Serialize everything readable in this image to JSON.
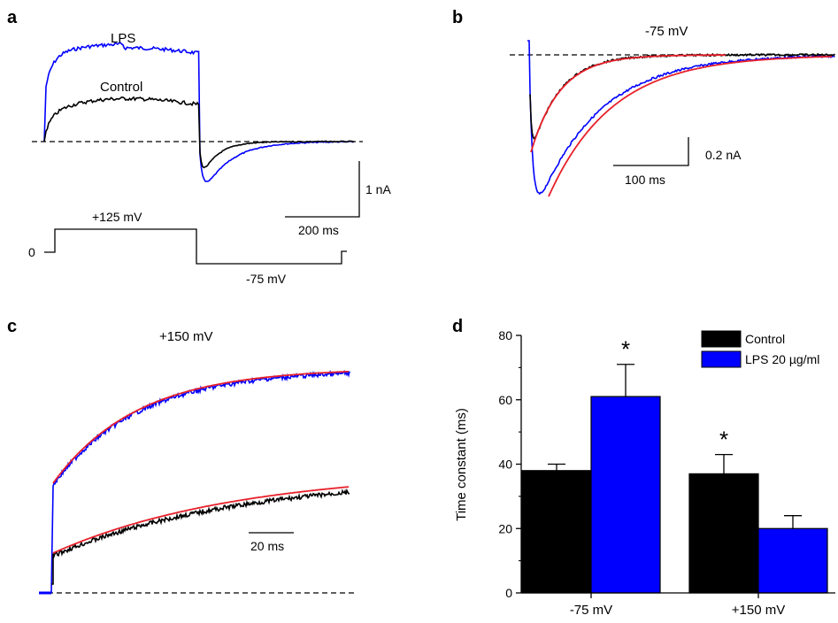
{
  "colors": {
    "control": "#000000",
    "lps": "#0000ff",
    "fit": "#e8202a",
    "axis": "#000000"
  },
  "panels": {
    "a": {
      "letter": "a",
      "lps_label": "LPS",
      "control_label": "Control",
      "scale_current": "1 nA",
      "scale_time": "200 ms",
      "protocol_zero": "0",
      "protocol_step": "+125 mV",
      "protocol_tail": "-75 mV"
    },
    "b": {
      "letter": "b",
      "title": "-75 mV",
      "scale_current": "0.2 nA",
      "scale_time": "100 ms"
    },
    "c": {
      "letter": "c",
      "title": "+150 mV",
      "scale_time": "20 ms"
    },
    "d": {
      "letter": "d"
    }
  },
  "chart_data": {
    "type": "bar",
    "categories": [
      "-75 mV",
      "+150 mV"
    ],
    "ylabel": "Time constant (ms)",
    "xlabel": "",
    "ylim": [
      0,
      80
    ],
    "yticks": [
      "0",
      "20",
      "40",
      "60",
      "80"
    ],
    "legend_position": "top-right",
    "series": [
      {
        "name": "Control",
        "color": "#000000",
        "values": [
          38,
          37
        ],
        "errors": [
          2,
          6
        ]
      },
      {
        "name": "LPS 20 µg/ml",
        "color": "#0000ff",
        "values": [
          61,
          20
        ],
        "errors": [
          10,
          4
        ]
      }
    ],
    "annotations": [
      {
        "text": "*",
        "category": "-75 mV",
        "series": "LPS 20 µg/ml"
      },
      {
        "text": "*",
        "category": "+150 mV",
        "series": "Control"
      }
    ]
  }
}
